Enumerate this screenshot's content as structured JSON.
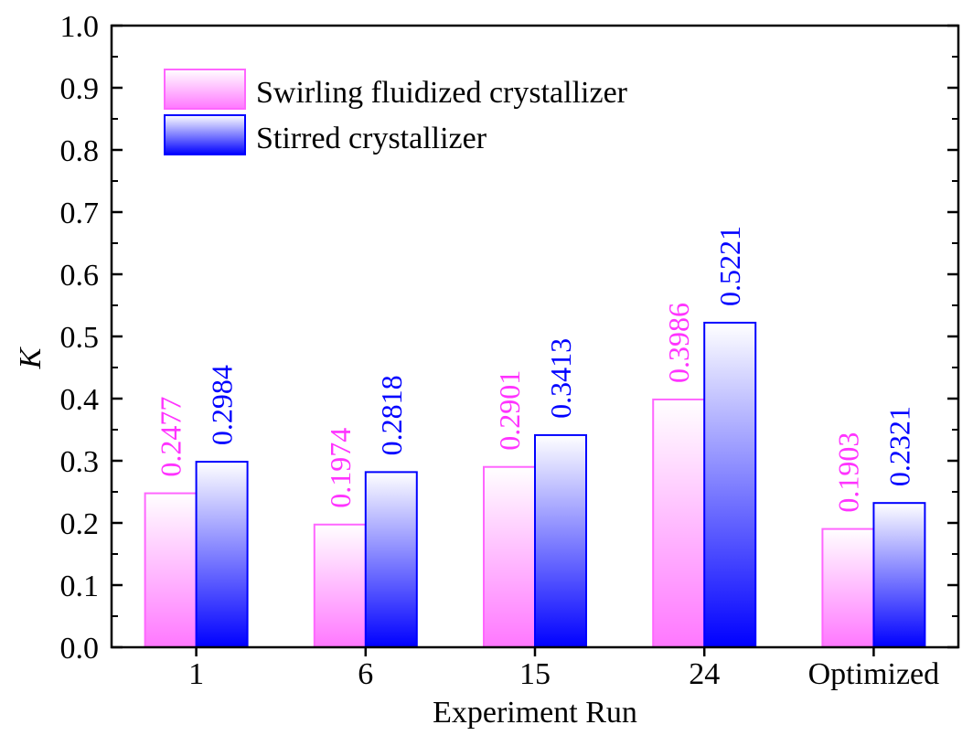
{
  "chart_data": {
    "type": "bar",
    "title": "",
    "xlabel": "Experiment Run",
    "ylabel": "K",
    "categories": [
      "1",
      "6",
      "15",
      "24",
      "Optimized"
    ],
    "ylim": [
      0.0,
      1.0
    ],
    "yticks": [
      "0.0",
      "0.1",
      "0.2",
      "0.3",
      "0.4",
      "0.5",
      "0.6",
      "0.7",
      "0.8",
      "0.9",
      "1.0"
    ],
    "legend_position": "top-left",
    "series": [
      {
        "name": "Swirling fluidized crystallizer",
        "values": [
          0.2477,
          0.1974,
          0.2901,
          0.3986,
          0.1903
        ],
        "labels": [
          "0.2477",
          "0.1974",
          "0.2901",
          "0.3986",
          "0.1903"
        ],
        "color": "#ff33ff",
        "gradient_light": "#ffffff",
        "gradient_dark": "#ff77ff"
      },
      {
        "name": "Stirred crystallizer",
        "values": [
          0.2984,
          0.2818,
          0.3413,
          0.5221,
          0.2321
        ],
        "labels": [
          "0.2984",
          "0.2818",
          "0.3413",
          "0.5221",
          "0.2321"
        ],
        "color": "#0000ff",
        "gradient_light": "#ffffff",
        "gradient_dark": "#0000ff"
      }
    ]
  }
}
